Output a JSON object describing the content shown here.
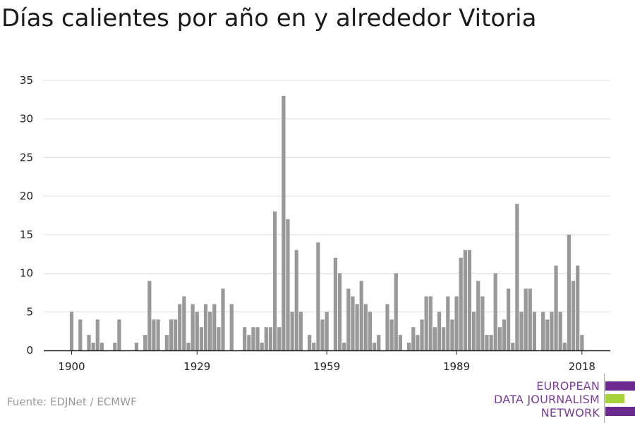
{
  "title": "Días calientes por año en y alrededor Vitoria",
  "source": "Fuente: EDJNet / ECMWF",
  "logo": {
    "lines": [
      "EUROPEAN",
      "DATA JOURNALISM",
      "NETWORK"
    ],
    "colors": {
      "text": "#7a3d9a",
      "purple": "#6a2a90",
      "green": "#a6d23c"
    }
  },
  "colors": {
    "bar": "#999999",
    "grid": "#dddddd",
    "axis": "#222222",
    "tick_text": "#222222"
  },
  "chart_data": {
    "type": "bar",
    "xlabel": "",
    "ylabel": "",
    "ylim": [
      0,
      35
    ],
    "yticks": [
      0,
      5,
      10,
      15,
      20,
      25,
      30,
      35
    ],
    "xticks": [
      1900,
      1929,
      1959,
      1989,
      2018
    ],
    "grid": true,
    "x_first": 1900,
    "values": [
      5,
      0,
      4,
      0,
      2,
      1,
      4,
      1,
      0,
      0,
      1,
      4,
      0,
      0,
      0,
      1,
      0,
      2,
      9,
      4,
      4,
      0,
      2,
      4,
      4,
      6,
      7,
      1,
      6,
      5,
      3,
      6,
      5,
      6,
      3,
      8,
      0,
      6,
      0,
      0,
      3,
      2,
      3,
      3,
      1,
      3,
      3,
      18,
      3,
      33,
      17,
      5,
      13,
      5,
      0,
      2,
      1,
      14,
      4,
      5,
      0,
      12,
      10,
      1,
      8,
      7,
      6,
      9,
      6,
      5,
      1,
      2,
      0,
      6,
      4,
      10,
      2,
      0,
      1,
      3,
      2,
      4,
      7,
      7,
      3,
      5,
      3,
      7,
      4,
      7,
      12,
      13,
      13,
      5,
      9,
      7,
      2,
      2,
      10,
      3,
      4,
      8,
      1,
      19,
      5,
      8,
      8,
      5,
      0,
      5,
      4,
      5,
      11,
      5,
      1,
      15,
      9,
      11,
      2
    ]
  }
}
